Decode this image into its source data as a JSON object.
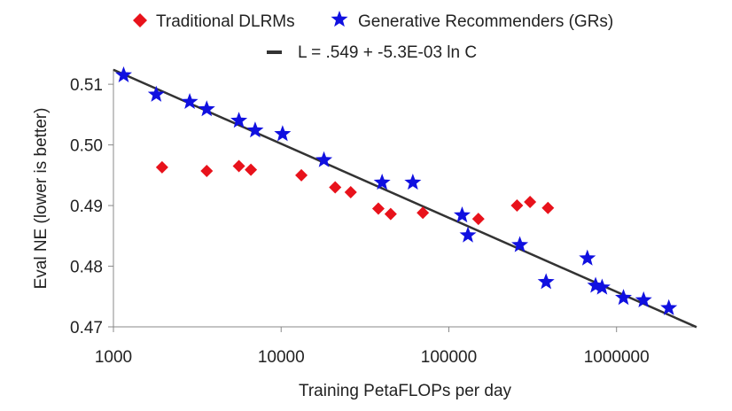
{
  "chart_data": {
    "type": "scatter",
    "title": "",
    "xlabel": "Training PetaFLOPs per day",
    "ylabel": "Eval NE (lower is better)",
    "x_scale": "log",
    "xlim": [
      1000,
      3000000
    ],
    "ylim": [
      0.47,
      0.5125
    ],
    "x_ticks": [
      1000,
      10000,
      100000,
      1000000
    ],
    "x_tick_labels": [
      "1000",
      "10000",
      "100000",
      "1000000"
    ],
    "y_ticks": [
      0.47,
      0.48,
      0.49,
      0.5,
      0.51
    ],
    "y_tick_labels": [
      "0.47",
      "0.48",
      "0.49",
      "0.50",
      "0.51"
    ],
    "grid": false,
    "legend_position": "top",
    "series": [
      {
        "name": "Traditional DLRMs",
        "marker": "diamond",
        "color": "#e8121b",
        "points": [
          [
            1950,
            0.4963
          ],
          [
            3600,
            0.4957
          ],
          [
            5600,
            0.4965
          ],
          [
            6600,
            0.4959
          ],
          [
            13200,
            0.495
          ],
          [
            21000,
            0.493
          ],
          [
            26000,
            0.4922
          ],
          [
            38000,
            0.4895
          ],
          [
            45000,
            0.4886
          ],
          [
            70000,
            0.4888
          ],
          [
            150000,
            0.4878
          ],
          [
            255000,
            0.49
          ],
          [
            305000,
            0.4906
          ],
          [
            390000,
            0.4896
          ]
        ]
      },
      {
        "name": "Generative Recommenders (GRs)",
        "marker": "star",
        "color": "#1010e0",
        "points": [
          [
            1150,
            0.5115
          ],
          [
            1800,
            0.5083
          ],
          [
            2850,
            0.5071
          ],
          [
            3600,
            0.5059
          ],
          [
            5600,
            0.504
          ],
          [
            7000,
            0.5024
          ],
          [
            10200,
            0.5018
          ],
          [
            18000,
            0.4975
          ],
          [
            40000,
            0.4938
          ],
          [
            61000,
            0.4938
          ],
          [
            120000,
            0.4884
          ],
          [
            130000,
            0.4851
          ],
          [
            265000,
            0.4835
          ],
          [
            380000,
            0.4774
          ],
          [
            670000,
            0.4813
          ],
          [
            750000,
            0.4768
          ],
          [
            820000,
            0.4765
          ],
          [
            1100000,
            0.4748
          ],
          [
            1450000,
            0.4744
          ],
          [
            2050000,
            0.4731
          ]
        ]
      }
    ],
    "fit": {
      "name": "L = .549 + -5.3E-03 ln C",
      "color": "#333333",
      "intercept": 0.549,
      "slope": -0.0053
    }
  }
}
